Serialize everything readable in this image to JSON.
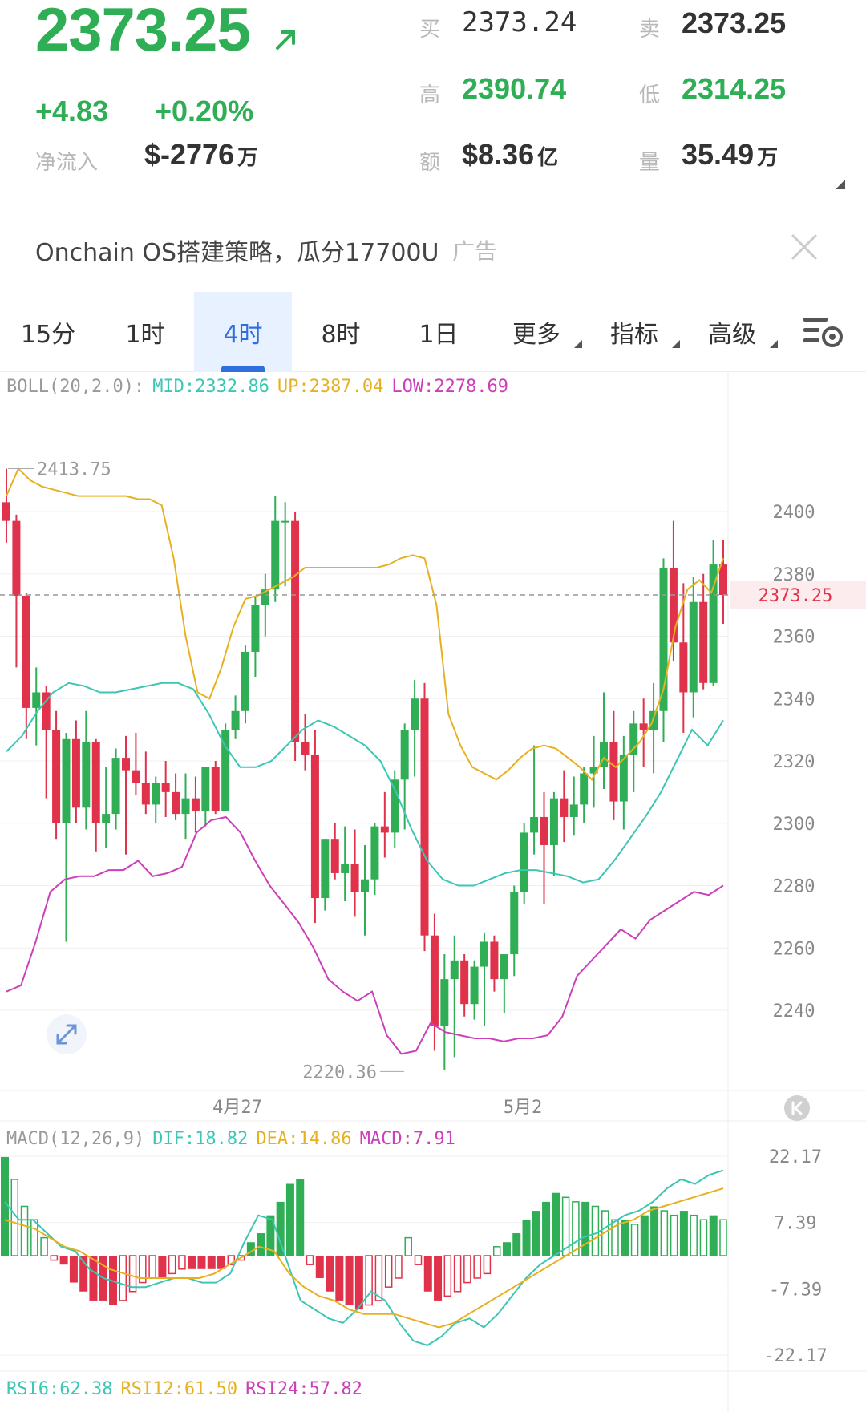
{
  "quote": {
    "last_price": "2373.25",
    "change": "+4.83",
    "change_pct": "+0.20%",
    "net_inflow_label": "净流入",
    "net_inflow_value": "$-2776",
    "net_inflow_unit": "万",
    "bid_label": "买",
    "bid_value": "2373.24",
    "ask_label": "卖",
    "ask_value": "2373.25",
    "high_label": "高",
    "high_value": "2390.74",
    "low_label": "低",
    "low_value": "2314.25",
    "amount_label": "额",
    "amount_value": "$8.36",
    "amount_unit": "亿",
    "volume_label": "量",
    "volume_value": "35.49",
    "volume_unit": "万"
  },
  "ad": {
    "text": "Onchain OS搭建策略，瓜分17700U",
    "tag": "广告"
  },
  "tabs": [
    {
      "label": "15分",
      "active": false
    },
    {
      "label": "1时",
      "active": false
    },
    {
      "label": "4时",
      "active": true
    },
    {
      "label": "8时",
      "active": false
    },
    {
      "label": "1日",
      "active": false
    },
    {
      "label": "更多",
      "active": false
    },
    {
      "label": "指标",
      "active": false
    },
    {
      "label": "高级",
      "active": false
    }
  ],
  "boll": {
    "name": "BOLL(20,2.0):",
    "mid": "MID:2332.86",
    "up": "UP:2387.04",
    "low": "LOW:2278.69"
  },
  "macd": {
    "name": "MACD(12,26,9)",
    "dif": "DIF:18.82",
    "dea": "DEA:14.86",
    "macd": "MACD:7.91"
  },
  "rsi": {
    "rsi6": "RSI6:62.38",
    "rsi12": "RSI12:61.50",
    "rsi24": "RSI24:57.82"
  },
  "colors": {
    "up": "#2fae56",
    "down": "#e0324a",
    "mid": "#3cc6b3",
    "upper": "#e6b121",
    "lower": "#cc3fb8",
    "accent": "#2f6fdd"
  },
  "chart_data": [
    {
      "type": "candlestick",
      "title": "",
      "x_tick_labels": [
        "4月27",
        "5月2"
      ],
      "y_ticks": [
        2400,
        2380,
        2360,
        2340,
        2320,
        2300,
        2280,
        2260,
        2240
      ],
      "ylim": [
        2205,
        2420
      ],
      "current_price_label": "2373.25",
      "max_label": "2413.75",
      "min_label": "2220.36",
      "candles": [
        [
          2403,
          2413.75,
          2390,
          2397
        ],
        [
          2397,
          2399,
          2350,
          2373
        ],
        [
          2373,
          2374,
          2327,
          2337
        ],
        [
          2337,
          2350,
          2325,
          2342
        ],
        [
          2342,
          2344,
          2308,
          2330
        ],
        [
          2330,
          2336,
          2295,
          2300
        ],
        [
          2300,
          2329,
          2262,
          2327
        ],
        [
          2327,
          2333,
          2300,
          2305
        ],
        [
          2305,
          2336,
          2298,
          2326
        ],
        [
          2326,
          2327,
          2291,
          2300
        ],
        [
          2300,
          2318,
          2292,
          2303
        ],
        [
          2303,
          2324,
          2298,
          2321
        ],
        [
          2321,
          2328,
          2290,
          2317
        ],
        [
          2317,
          2329,
          2309,
          2313
        ],
        [
          2313,
          2323,
          2303,
          2306
        ],
        [
          2306,
          2315,
          2300,
          2313
        ],
        [
          2313,
          2320,
          2302,
          2310
        ],
        [
          2310,
          2316,
          2301,
          2303
        ],
        [
          2303,
          2316,
          2295,
          2308
        ],
        [
          2308,
          2315,
          2297,
          2304
        ],
        [
          2304,
          2318,
          2299,
          2318
        ],
        [
          2318,
          2320,
          2303,
          2304
        ],
        [
          2304,
          2332,
          2304,
          2330
        ],
        [
          2330,
          2341,
          2327,
          2336
        ],
        [
          2336,
          2357,
          2332,
          2355
        ],
        [
          2355,
          2373,
          2347,
          2370
        ],
        [
          2370,
          2380,
          2360,
          2375
        ],
        [
          2375,
          2405,
          2371,
          2397
        ],
        [
          2397,
          2403,
          2376,
          2397
        ],
        [
          2397,
          2400,
          2320,
          2326
        ],
        [
          2326,
          2335,
          2317,
          2322
        ],
        [
          2322,
          2330,
          2268,
          2276
        ],
        [
          2276,
          2295,
          2272,
          2295
        ],
        [
          2295,
          2300,
          2282,
          2284
        ],
        [
          2284,
          2299,
          2275,
          2287
        ],
        [
          2287,
          2298,
          2270,
          2278
        ],
        [
          2278,
          2293,
          2264,
          2282
        ],
        [
          2282,
          2300,
          2277,
          2299
        ],
        [
          2299,
          2310,
          2289,
          2297
        ],
        [
          2297,
          2317,
          2292,
          2314
        ],
        [
          2314,
          2332,
          2298,
          2330
        ],
        [
          2330,
          2346,
          2315,
          2340
        ],
        [
          2340,
          2345,
          2259,
          2264
        ],
        [
          2264,
          2271,
          2227,
          2235
        ],
        [
          2235,
          2258,
          2221,
          2250
        ],
        [
          2250,
          2264,
          2225,
          2256
        ],
        [
          2256,
          2258,
          2238,
          2242
        ],
        [
          2242,
          2256,
          2237,
          2254
        ],
        [
          2254,
          2265,
          2235,
          2262
        ],
        [
          2262,
          2264,
          2246,
          2250
        ],
        [
          2250,
          2257,
          2239,
          2258
        ],
        [
          2258,
          2280,
          2251,
          2278
        ],
        [
          2278,
          2300,
          2274,
          2297
        ],
        [
          2297,
          2325,
          2290,
          2302
        ],
        [
          2302,
          2310,
          2274,
          2293
        ],
        [
          2293,
          2310,
          2283,
          2308
        ],
        [
          2308,
          2317,
          2294,
          2302
        ],
        [
          2302,
          2315,
          2296,
          2306
        ],
        [
          2306,
          2318,
          2300,
          2316
        ],
        [
          2316,
          2328,
          2305,
          2318
        ],
        [
          2318,
          2342,
          2311,
          2326
        ],
        [
          2326,
          2336,
          2301,
          2307
        ],
        [
          2307,
          2328,
          2298,
          2322
        ],
        [
          2322,
          2336,
          2310,
          2332
        ],
        [
          2332,
          2340,
          2318,
          2330
        ],
        [
          2330,
          2345,
          2316,
          2336
        ],
        [
          2336,
          2385,
          2326,
          2382
        ],
        [
          2382,
          2397,
          2352,
          2358
        ],
        [
          2358,
          2377,
          2329,
          2342
        ],
        [
          2342,
          2379,
          2334,
          2371
        ],
        [
          2371,
          2380,
          2343,
          2345
        ],
        [
          2345,
          2391,
          2344,
          2383
        ],
        [
          2383,
          2391,
          2364,
          2373.25
        ]
      ],
      "boll_upper": [
        2405,
        2413.75,
        2410,
        2408,
        2407,
        2406,
        2405,
        2405,
        2405,
        2405,
        2405,
        2404,
        2404,
        2402,
        2385,
        2360,
        2342,
        2340,
        2350,
        2363,
        2372,
        2373,
        2375,
        2377,
        2379,
        2382,
        2382,
        2382,
        2382,
        2382,
        2382,
        2382,
        2383,
        2385,
        2386,
        2385,
        2370,
        2335,
        2325,
        2318,
        2316,
        2314,
        2317,
        2321,
        2324,
        2325,
        2324,
        2321,
        2318,
        2314,
        2321,
        2318,
        2322,
        2326,
        2332,
        2343,
        2363,
        2375,
        2378,
        2374,
        2385
      ],
      "boll_mid": [
        2323,
        2328,
        2336,
        2342,
        2345,
        2344,
        2342,
        2342,
        2343,
        2344,
        2345,
        2345,
        2343,
        2335,
        2325,
        2318,
        2318,
        2320,
        2325,
        2330,
        2333,
        2331,
        2328,
        2325,
        2320,
        2310,
        2298,
        2288,
        2282,
        2280,
        2280,
        2282,
        2284,
        2285,
        2285,
        2284,
        2283,
        2281,
        2282,
        2288,
        2295,
        2302,
        2310,
        2320,
        2330,
        2325,
        2333
      ],
      "boll_lower": [
        2246,
        2248,
        2262,
        2278,
        2282,
        2283,
        2283,
        2285,
        2285,
        2288,
        2283,
        2284,
        2286,
        2297,
        2301,
        2302,
        2297,
        2288,
        2280,
        2274,
        2268,
        2260,
        2250,
        2246,
        2243,
        2246,
        2232,
        2226,
        2227,
        2236,
        2233,
        2232,
        2231,
        2231,
        2230,
        2231,
        2231,
        2232,
        2238,
        2251,
        2256,
        2261,
        2266,
        2263,
        2269,
        2272,
        2275,
        2278,
        2277,
        2280
      ]
    },
    {
      "type": "bar",
      "title": "",
      "y_ticks": [
        22.17,
        7.39,
        -7.39,
        -22.17
      ],
      "ylim": [
        -22.17,
        22.17
      ],
      "macd_hist": [
        22,
        17,
        11,
        8,
        4,
        -1,
        -2,
        -6,
        -8,
        -10,
        -10,
        -11,
        -10,
        -8,
        -6,
        -5,
        -5,
        -4,
        -3,
        -3,
        -3,
        -3,
        -3,
        -2,
        -1,
        3,
        5,
        9,
        12,
        16,
        17,
        -2,
        -5,
        -8,
        -10,
        -11,
        -12,
        -11,
        -10,
        -7,
        -5,
        4,
        -2,
        -8,
        -10,
        -9,
        -8,
        -6,
        -5,
        -4,
        2,
        3,
        5,
        8,
        10,
        12,
        14,
        13,
        12,
        12,
        11,
        10,
        8,
        8,
        7,
        9,
        11,
        10,
        9,
        10,
        9,
        8,
        9,
        8
      ],
      "dif": [
        12,
        8,
        8,
        5,
        2,
        1,
        -3,
        -5,
        -6,
        -7,
        -7,
        -6,
        -5,
        -5,
        -6,
        -6,
        -4,
        3,
        9,
        8,
        -1,
        -10,
        -12,
        -14,
        -15,
        -12,
        -8,
        -10,
        -15,
        -19,
        -20,
        -18,
        -15,
        -14,
        -16,
        -13,
        -9,
        -5,
        -2,
        0,
        2,
        4,
        5,
        7,
        9,
        10,
        12,
        15,
        17,
        16,
        18,
        19
      ],
      "dea": [
        8,
        7,
        6,
        4,
        2,
        1,
        -1,
        -3,
        -4,
        -5,
        -5,
        -5,
        -5,
        -5,
        -4,
        -2,
        0,
        2,
        1,
        -4,
        -7,
        -9,
        -10,
        -12,
        -13,
        -13,
        -13,
        -14,
        -15,
        -16,
        -15,
        -13,
        -11,
        -9,
        -7,
        -5,
        -3,
        -1,
        1,
        3,
        5,
        7,
        8,
        10,
        11,
        12,
        13,
        14,
        15
      ]
    }
  ]
}
